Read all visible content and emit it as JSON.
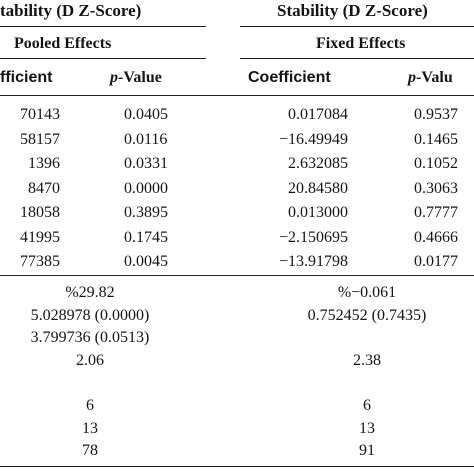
{
  "header": {
    "group_left": "tability (D Z-Score)",
    "group_right": "Stability (D Z-Score)",
    "sub_left": "Pooled Effects",
    "sub_right": "Fixed Effects"
  },
  "columns": {
    "c1": "fficient",
    "c2_italic": "p",
    "c2_rest": "-Value",
    "c3": "Coefficient",
    "c4_italic": "p",
    "c4_rest": "-Valu"
  },
  "rows": [
    [
      "70143",
      "0.0405",
      "0.017084",
      "0.9537"
    ],
    [
      "58157",
      "0.0116",
      "−16.49949",
      "0.1465"
    ],
    [
      "1396",
      "0.0331",
      "2.632085",
      "0.1052"
    ],
    [
      "8470",
      "0.0000",
      "20.84580",
      "0.3063"
    ],
    [
      "18058",
      "0.3895",
      "0.013000",
      "0.7777"
    ],
    [
      "41995",
      "0.1745",
      "−2.150695",
      "0.4666"
    ],
    [
      "77385",
      "0.0045",
      "−13.91798",
      "0.0177"
    ]
  ],
  "summary": [
    {
      "left": "%29.82",
      "right": "%−0.061"
    },
    {
      "left": "5.028978 (0.0000)",
      "right": "0.752452 (0.7435)"
    },
    {
      "left": "3.799736 (0.0513)",
      "right": ""
    },
    {
      "left": "2.06",
      "right": "2.38"
    },
    {
      "left": "",
      "right": ""
    },
    {
      "left": "6",
      "right": "6"
    },
    {
      "left": "13",
      "right": "13"
    },
    {
      "left": "78",
      "right": "91"
    }
  ]
}
